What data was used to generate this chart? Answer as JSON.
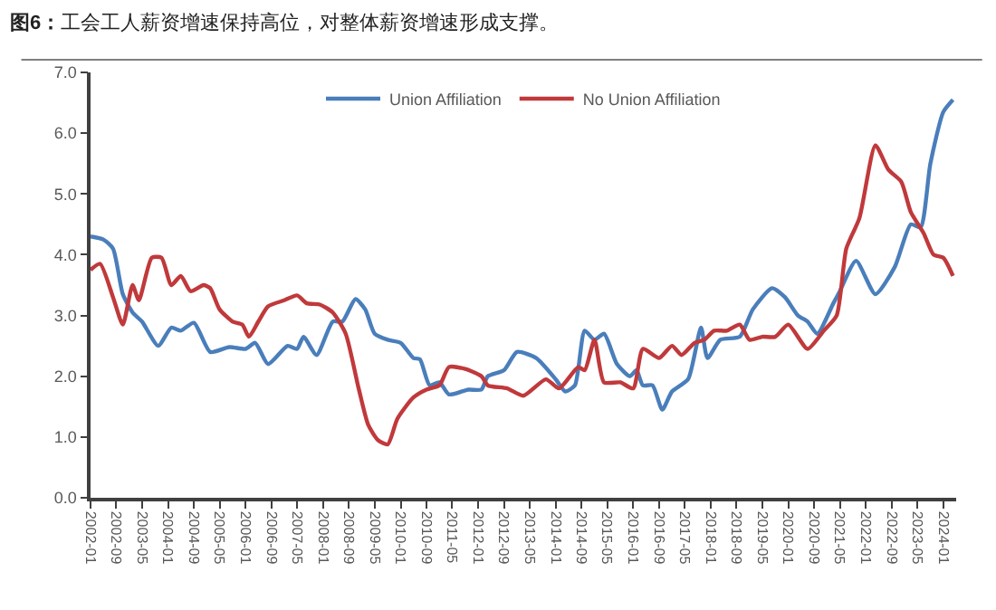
{
  "chart_data": {
    "type": "line",
    "title": "图6：工会工人薪资增速保持高位，对整体薪资增速形成支撑。",
    "series": [
      {
        "name": "Union Affiliation",
        "color": "#4a7ebb",
        "x": [
          "2002-01",
          "2002-05",
          "2002-08",
          "2002-11",
          "2003-02",
          "2003-05",
          "2003-10",
          "2004-02",
          "2004-05",
          "2004-09",
          "2005-02",
          "2005-08",
          "2006-01",
          "2006-04",
          "2006-08",
          "2007-02",
          "2007-05",
          "2007-07",
          "2007-11",
          "2008-04",
          "2008-07",
          "2008-11",
          "2009-02",
          "2009-05",
          "2009-09",
          "2010-01",
          "2010-05",
          "2010-07",
          "2010-10",
          "2011-01",
          "2011-04",
          "2011-10",
          "2012-02",
          "2012-04",
          "2012-09",
          "2013-01",
          "2013-07",
          "2014-01",
          "2014-04",
          "2014-07",
          "2014-10",
          "2015-01",
          "2015-04",
          "2015-08",
          "2015-12",
          "2016-02",
          "2016-04",
          "2016-07",
          "2016-10",
          "2017-01",
          "2017-06",
          "2017-10",
          "2017-12",
          "2018-04",
          "2018-10",
          "2019-02",
          "2019-08",
          "2019-12",
          "2020-04",
          "2020-07",
          "2020-10",
          "2021-03",
          "2021-05",
          "2021-10",
          "2022-04",
          "2022-10",
          "2023-03",
          "2023-06",
          "2023-09",
          "2024-01",
          "2024-04"
        ],
        "values": [
          4.3,
          4.25,
          4.1,
          3.35,
          3.05,
          2.9,
          2.5,
          2.8,
          2.75,
          2.88,
          2.4,
          2.48,
          2.45,
          2.55,
          2.2,
          2.5,
          2.45,
          2.65,
          2.35,
          2.9,
          2.9,
          3.27,
          3.1,
          2.7,
          2.6,
          2.55,
          2.3,
          2.28,
          1.85,
          1.9,
          1.7,
          1.78,
          1.78,
          2.0,
          2.1,
          2.4,
          2.3,
          1.95,
          1.75,
          1.85,
          2.75,
          2.6,
          2.7,
          2.2,
          2.0,
          2.1,
          1.85,
          1.85,
          1.45,
          1.75,
          1.95,
          2.8,
          2.3,
          2.6,
          2.65,
          3.1,
          3.45,
          3.3,
          3.0,
          2.9,
          2.7,
          3.2,
          3.4,
          3.9,
          3.35,
          3.8,
          4.5,
          4.45,
          5.5,
          6.35,
          6.55
        ]
      },
      {
        "name": "No Union Affiliation",
        "color": "#c0393b",
        "x": [
          "2002-01",
          "2002-04",
          "2002-08",
          "2002-11",
          "2003-02",
          "2003-04",
          "2003-08",
          "2003-11",
          "2004-02",
          "2004-05",
          "2004-08",
          "2004-12",
          "2005-02",
          "2005-05",
          "2005-09",
          "2005-12",
          "2006-02",
          "2006-05",
          "2006-08",
          "2007-01",
          "2007-05",
          "2007-08",
          "2007-12",
          "2008-04",
          "2008-08",
          "2008-12",
          "2009-03",
          "2009-06",
          "2009-09",
          "2009-12",
          "2010-05",
          "2010-09",
          "2011-01",
          "2011-04",
          "2011-09",
          "2012-02",
          "2012-04",
          "2012-10",
          "2013-03",
          "2013-10",
          "2014-02",
          "2014-08",
          "2014-10",
          "2015-01",
          "2015-04",
          "2015-09",
          "2016-01",
          "2016-04",
          "2016-09",
          "2017-01",
          "2017-04",
          "2017-08",
          "2017-11",
          "2018-02",
          "2018-06",
          "2018-10",
          "2019-01",
          "2019-05",
          "2019-09",
          "2020-01",
          "2020-07",
          "2020-12",
          "2021-04",
          "2021-07",
          "2021-11",
          "2022-04",
          "2022-08",
          "2022-12",
          "2023-03",
          "2023-07",
          "2023-10",
          "2024-01",
          "2024-04"
        ],
        "values": [
          3.75,
          3.85,
          3.3,
          2.85,
          3.5,
          3.25,
          3.95,
          3.95,
          3.5,
          3.65,
          3.4,
          3.5,
          3.45,
          3.1,
          2.9,
          2.85,
          2.65,
          2.9,
          3.15,
          3.25,
          3.33,
          3.2,
          3.18,
          3.05,
          2.7,
          1.8,
          1.2,
          0.95,
          0.88,
          1.3,
          1.65,
          1.78,
          1.85,
          2.15,
          2.12,
          2.0,
          1.85,
          1.8,
          1.68,
          1.95,
          1.8,
          2.15,
          2.1,
          2.6,
          1.9,
          1.9,
          1.8,
          2.45,
          2.3,
          2.5,
          2.35,
          2.55,
          2.6,
          2.75,
          2.75,
          2.85,
          2.6,
          2.65,
          2.65,
          2.85,
          2.45,
          2.75,
          3.0,
          4.1,
          4.6,
          5.8,
          5.4,
          5.2,
          4.7,
          4.35,
          4.0,
          3.95,
          3.65
        ]
      }
    ],
    "xlim": [
      "2002-01",
      "2024-05"
    ],
    "xticks": [
      "2002-01",
      "2002-09",
      "2003-05",
      "2004-01",
      "2004-09",
      "2005-05",
      "2006-01",
      "2006-09",
      "2007-05",
      "2008-01",
      "2008-09",
      "2009-05",
      "2010-01",
      "2010-09",
      "2011-05",
      "2012-01",
      "2012-09",
      "2013-05",
      "2014-01",
      "2014-09",
      "2015-05",
      "2016-01",
      "2016-09",
      "2017-05",
      "2018-01",
      "2018-09",
      "2019-05",
      "2020-01",
      "2020-09",
      "2021-05",
      "2022-01",
      "2022-09",
      "2023-05",
      "2024-01"
    ],
    "ylim": [
      0,
      7
    ],
    "yticks": [
      {
        "value": 0,
        "label": "0.0"
      },
      {
        "value": 1,
        "label": "1.0"
      },
      {
        "value": 2,
        "label": "2.0"
      },
      {
        "value": 3,
        "label": "3.0"
      },
      {
        "value": 4,
        "label": "4.0"
      },
      {
        "value": 5,
        "label": "5.0"
      },
      {
        "value": 6,
        "label": "6.0"
      },
      {
        "value": 7,
        "label": "7.0"
      }
    ],
    "grid": false,
    "legend": "top",
    "marker": "none",
    "line_style": "solid"
  }
}
